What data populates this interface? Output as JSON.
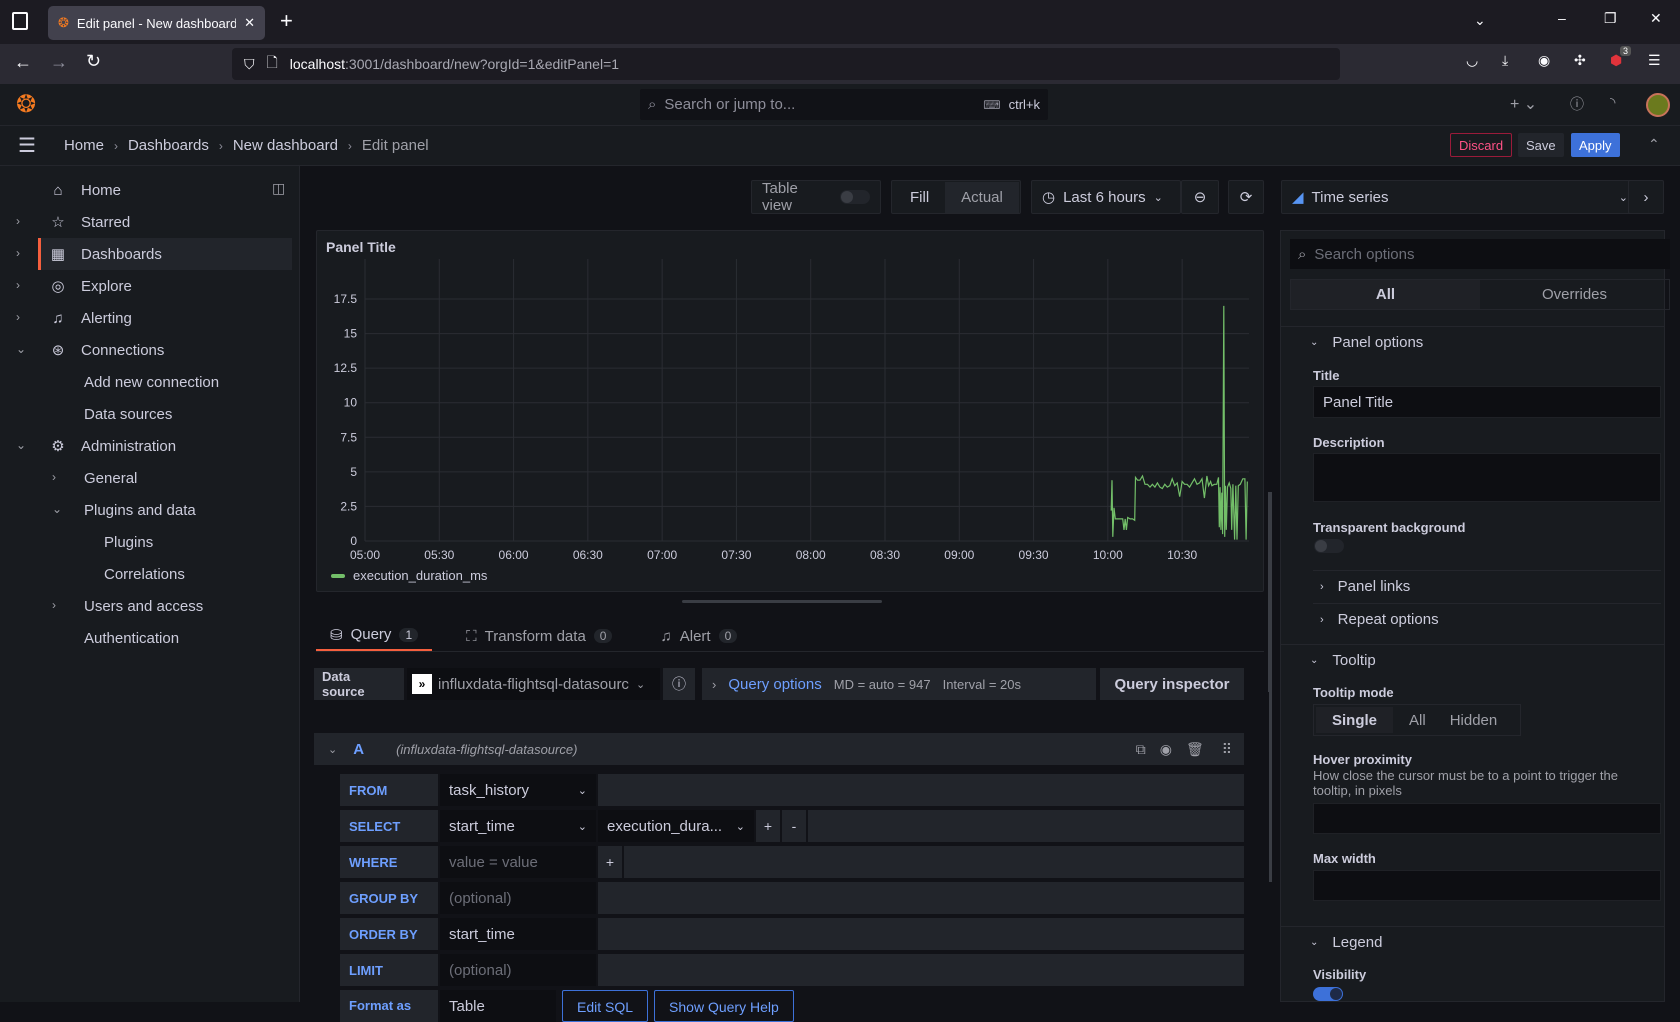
{
  "browser": {
    "tab_title": "Edit panel - New dashboard - D",
    "url_host": "localhost",
    "url_rest": ":3001/dashboard/new?orgId=1&editPanel=1",
    "extension_badge": "3"
  },
  "topbar": {
    "search_placeholder": "Search or jump to...",
    "shortcut": "ctrl+k",
    "new_label": "+"
  },
  "breadcrumb": [
    "Home",
    "Dashboards",
    "New dashboard",
    "Edit panel"
  ],
  "actions": {
    "discard": "Discard",
    "save": "Save",
    "apply": "Apply"
  },
  "sidebar": {
    "items": [
      {
        "label": "Home",
        "icon": "home-icon",
        "glyph": "⌂",
        "level": 0
      },
      {
        "label": "Starred",
        "icon": "star-icon",
        "glyph": "☆",
        "level": 0,
        "chevron": "›"
      },
      {
        "label": "Dashboards",
        "icon": "dashboards-icon",
        "glyph": "▦",
        "level": 0,
        "chevron": "›",
        "active": true
      },
      {
        "label": "Explore",
        "icon": "compass-icon",
        "glyph": "◎",
        "level": 0,
        "chevron": "›"
      },
      {
        "label": "Alerting",
        "icon": "bell-icon",
        "glyph": "♫",
        "level": 0,
        "chevron": "›"
      },
      {
        "label": "Connections",
        "icon": "connections-icon",
        "glyph": "⊛",
        "level": 0,
        "chevron": "⌄"
      },
      {
        "label": "Add new connection",
        "level": 1
      },
      {
        "label": "Data sources",
        "level": 1
      },
      {
        "label": "Administration",
        "icon": "cog-icon",
        "glyph": "⚙",
        "level": 0,
        "chevron": "⌄"
      },
      {
        "label": "General",
        "level": 1,
        "chevron": "›"
      },
      {
        "label": "Plugins and data",
        "level": 1,
        "chevron": "⌄"
      },
      {
        "label": "Plugins",
        "level": 2
      },
      {
        "label": "Correlations",
        "level": 2
      },
      {
        "label": "Users and access",
        "level": 1,
        "chevron": "›"
      },
      {
        "label": "Authentication",
        "level": 1
      }
    ]
  },
  "toolbar": {
    "table_view": "Table view",
    "table_view_on": false,
    "fill": "Fill",
    "actual": "Actual",
    "time_range": "Last 6 hours",
    "visualization": "Time series"
  },
  "panel": {
    "title": "Panel Title",
    "legend": "execution_duration_ms"
  },
  "chart_data": {
    "type": "line",
    "title": "Panel Title",
    "x_ticks": [
      "05:00",
      "05:30",
      "06:00",
      "06:30",
      "07:00",
      "07:30",
      "08:00",
      "08:30",
      "09:00",
      "09:30",
      "10:00",
      "10:30"
    ],
    "y_ticks": [
      0,
      2.5,
      5,
      7.5,
      10,
      12.5,
      15,
      17.5
    ],
    "xlim": [
      "05:00",
      "10:57"
    ],
    "ylim": [
      0,
      19
    ],
    "grid": true,
    "legend_placement": "bottom-left",
    "series": [
      {
        "name": "execution_duration_ms",
        "color": "#73bf69",
        "points": [
          [
            "10:01:20",
            2.2
          ],
          [
            "10:01:40",
            4.4
          ],
          [
            "10:02:00",
            0.3
          ],
          [
            "10:02:30",
            2.4
          ],
          [
            "10:03:00",
            1.6
          ],
          [
            "10:04:00",
            1.6
          ],
          [
            "10:05:00",
            1.6
          ],
          [
            "10:06:00",
            1.6
          ],
          [
            "10:06:30",
            0.8
          ],
          [
            "10:07:00",
            1.6
          ],
          [
            "10:07:30",
            0.8
          ],
          [
            "10:08:00",
            1.7
          ],
          [
            "10:09:00",
            1.6
          ],
          [
            "10:10:00",
            1.6
          ],
          [
            "10:10:50",
            1.5
          ],
          [
            "10:11:10",
            4.6
          ],
          [
            "10:12:00",
            4.4
          ],
          [
            "10:13:00",
            4.4
          ],
          [
            "10:14:00",
            4.7
          ],
          [
            "10:15:00",
            4.1
          ],
          [
            "10:16:00",
            4.1
          ],
          [
            "10:17:00",
            3.9
          ],
          [
            "10:18:00",
            4.1
          ],
          [
            "10:19:00",
            3.9
          ],
          [
            "10:20:00",
            4.2
          ],
          [
            "10:21:00",
            3.9
          ],
          [
            "10:22:00",
            3.8
          ],
          [
            "10:23:00",
            4.1
          ],
          [
            "10:24:00",
            3.9
          ],
          [
            "10:25:00",
            4.0
          ],
          [
            "10:26:00",
            4.5
          ],
          [
            "10:27:00",
            4.0
          ],
          [
            "10:28:00",
            4.2
          ],
          [
            "10:29:00",
            3.2
          ],
          [
            "10:30:00",
            4.3
          ],
          [
            "10:31:00",
            4.1
          ],
          [
            "10:32:00",
            4.1
          ],
          [
            "10:33:00",
            3.9
          ],
          [
            "10:34:00",
            4.2
          ],
          [
            "10:35:00",
            4.5
          ],
          [
            "10:36:00",
            4.1
          ],
          [
            "10:37:00",
            4.2
          ],
          [
            "10:38:00",
            4.5
          ],
          [
            "10:39:00",
            3.1
          ],
          [
            "10:40:00",
            4.7
          ],
          [
            "10:40:40",
            4.0
          ],
          [
            "10:41:30",
            4.3
          ],
          [
            "10:42:00",
            4.0
          ],
          [
            "10:43:00",
            4.1
          ],
          [
            "10:44:00",
            4.1
          ],
          [
            "10:44:40",
            4.6
          ],
          [
            "10:45:00",
            1.0
          ],
          [
            "10:45:20",
            3.9
          ],
          [
            "10:45:40",
            0.8
          ],
          [
            "10:46:00",
            3.5
          ],
          [
            "10:46:20",
            0.5
          ],
          [
            "10:46:50",
            17.0
          ],
          [
            "10:47:10",
            0.3
          ],
          [
            "10:47:30",
            4.0
          ],
          [
            "10:47:50",
            0.8
          ],
          [
            "10:48:20",
            3.9
          ],
          [
            "10:49:00",
            4.2
          ],
          [
            "10:49:40",
            3.8
          ],
          [
            "10:50:00",
            0.8
          ],
          [
            "10:50:30",
            4.1
          ],
          [
            "10:51:10",
            0.1
          ],
          [
            "10:51:40",
            4.0
          ],
          [
            "10:52:10",
            0.1
          ],
          [
            "10:52:40",
            4.0
          ],
          [
            "10:53:30",
            4.1
          ],
          [
            "10:54:30",
            4.5
          ],
          [
            "10:55:20",
            4.5
          ],
          [
            "10:55:50",
            0.1
          ],
          [
            "10:56:20",
            4.3
          ]
        ]
      }
    ]
  },
  "query_tabs": [
    {
      "label": "Query",
      "count": "1"
    },
    {
      "label": "Transform data",
      "count": "0"
    },
    {
      "label": "Alert",
      "count": "0"
    }
  ],
  "datasource": {
    "label": "Data source",
    "value": "influxdata-flightsql-datasourc",
    "query_options": "Query options",
    "md": "MD = auto = 947",
    "interval": "Interval = 20s",
    "inspector": "Query inspector"
  },
  "query": {
    "ref": "A",
    "source": "(influxdata-flightsql-datasource)",
    "from_label": "FROM",
    "from": "task_history",
    "select_label": "SELECT",
    "select1": "start_time",
    "select2": "execution_dura...",
    "plus": "+",
    "minus": "-",
    "where_label": "WHERE",
    "where_ph": "value = value",
    "group_label": "GROUP BY",
    "group_ph": "(optional)",
    "order_label": "ORDER BY",
    "order": "start_time",
    "limit_label": "LIMIT",
    "limit_ph": "(optional)",
    "format_label": "Format as",
    "format": "Table",
    "edit_sql": "Edit SQL",
    "help": "Show Query Help"
  },
  "options": {
    "search_placeholder": "Search options",
    "tab_all": "All",
    "tab_overrides": "Overrides",
    "panel_options": "Panel options",
    "title_label": "Title",
    "title_value": "Panel Title",
    "description_label": "Description",
    "transparent_label": "Transparent background",
    "transparent_on": false,
    "panel_links": "Panel links",
    "repeat_options": "Repeat options",
    "tooltip": "Tooltip",
    "tooltip_mode": "Tooltip mode",
    "modes": [
      "Single",
      "All",
      "Hidden"
    ],
    "mode_selected": "Single",
    "hover_label": "Hover proximity",
    "hover_desc": "How close the cursor must be to a point to trigger the tooltip, in pixels",
    "max_width": "Max width",
    "legend": "Legend",
    "visibility": "Visibility",
    "visibility_on": true
  }
}
